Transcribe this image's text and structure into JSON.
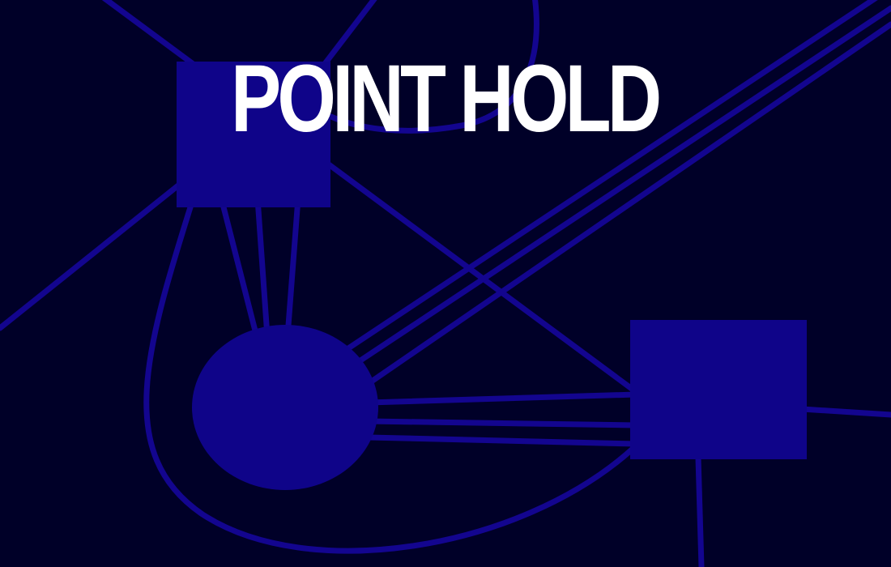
{
  "game": {
    "title": "POINT HOLD"
  },
  "colors": {
    "background": "#000028",
    "node": "#0f0489",
    "wire": "#13058f",
    "title": "#ffffff"
  }
}
